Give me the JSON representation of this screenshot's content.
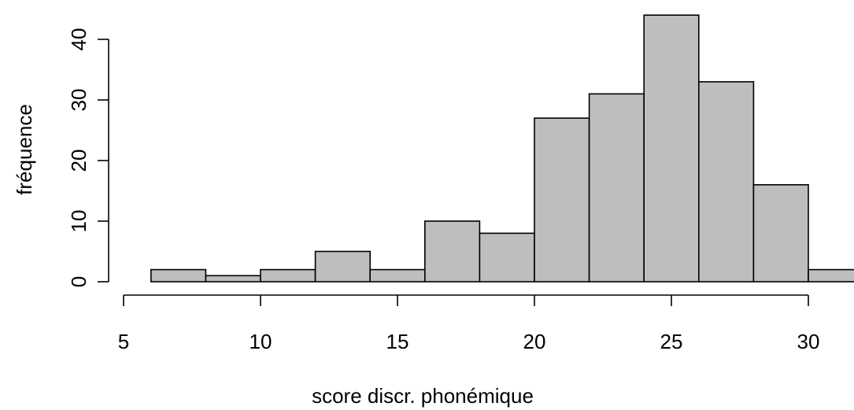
{
  "chart_data": {
    "type": "bar",
    "title": "",
    "xlabel": "score discr. phonémique",
    "ylabel": "fréquence",
    "bins": [
      {
        "x0": 6,
        "x1": 8,
        "count": 2
      },
      {
        "x0": 8,
        "x1": 10,
        "count": 1
      },
      {
        "x0": 10,
        "x1": 12,
        "count": 2
      },
      {
        "x0": 12,
        "x1": 14,
        "count": 5
      },
      {
        "x0": 14,
        "x1": 16,
        "count": 2
      },
      {
        "x0": 16,
        "x1": 18,
        "count": 10
      },
      {
        "x0": 18,
        "x1": 20,
        "count": 8
      },
      {
        "x0": 20,
        "x1": 22,
        "count": 27
      },
      {
        "x0": 22,
        "x1": 24,
        "count": 31
      },
      {
        "x0": 24,
        "x1": 26,
        "count": 44
      },
      {
        "x0": 26,
        "x1": 28,
        "count": 33
      },
      {
        "x0": 28,
        "x1": 30,
        "count": 16
      },
      {
        "x0": 30,
        "x1": 32,
        "count": 2
      }
    ],
    "xticks": [
      5,
      10,
      15,
      20,
      25,
      30
    ],
    "yticks": [
      0,
      10,
      20,
      30,
      40
    ],
    "xlim": [
      5,
      32
    ],
    "ylim": [
      0,
      44
    ],
    "bar_color": "#bebebe",
    "grid": false
  }
}
